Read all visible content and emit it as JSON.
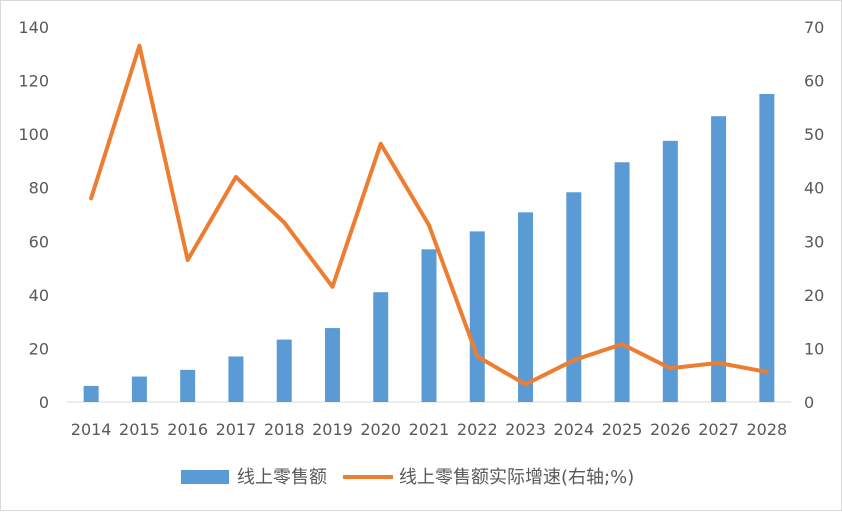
{
  "chart_data": {
    "type": "bar+line",
    "categories": [
      "2014",
      "2015",
      "2016",
      "2017",
      "2018",
      "2019",
      "2020",
      "2021",
      "2022",
      "2023",
      "2024",
      "2025",
      "2026",
      "2027",
      "2028"
    ],
    "series": [
      {
        "name": "线上零售额",
        "type": "bar",
        "axis": "left",
        "color": "#5B9BD5",
        "values": [
          6,
          9.5,
          12,
          17,
          23.3,
          27.6,
          41,
          57,
          63.7,
          70.8,
          78.3,
          89.5,
          97.5,
          106.7,
          115
        ]
      },
      {
        "name": "线上零售额实际增速(右轴;%)",
        "type": "line",
        "axis": "right",
        "color": "#ED7D31",
        "values": [
          38,
          66.5,
          26.5,
          42,
          33.5,
          21.5,
          48.2,
          33,
          8.5,
          3.3,
          7.8,
          10.8,
          6.3,
          7.3,
          5.6
        ]
      }
    ],
    "y_left": {
      "min": 0,
      "max": 140,
      "step": 20,
      "ticks": [
        "0",
        "20",
        "40",
        "60",
        "80",
        "100",
        "120",
        "140"
      ]
    },
    "y_right": {
      "min": 0,
      "max": 70,
      "step": 10,
      "ticks": [
        "0",
        "10",
        "20",
        "30",
        "40",
        "50",
        "60",
        "70"
      ]
    },
    "grid": false,
    "legend_position": "bottom"
  }
}
